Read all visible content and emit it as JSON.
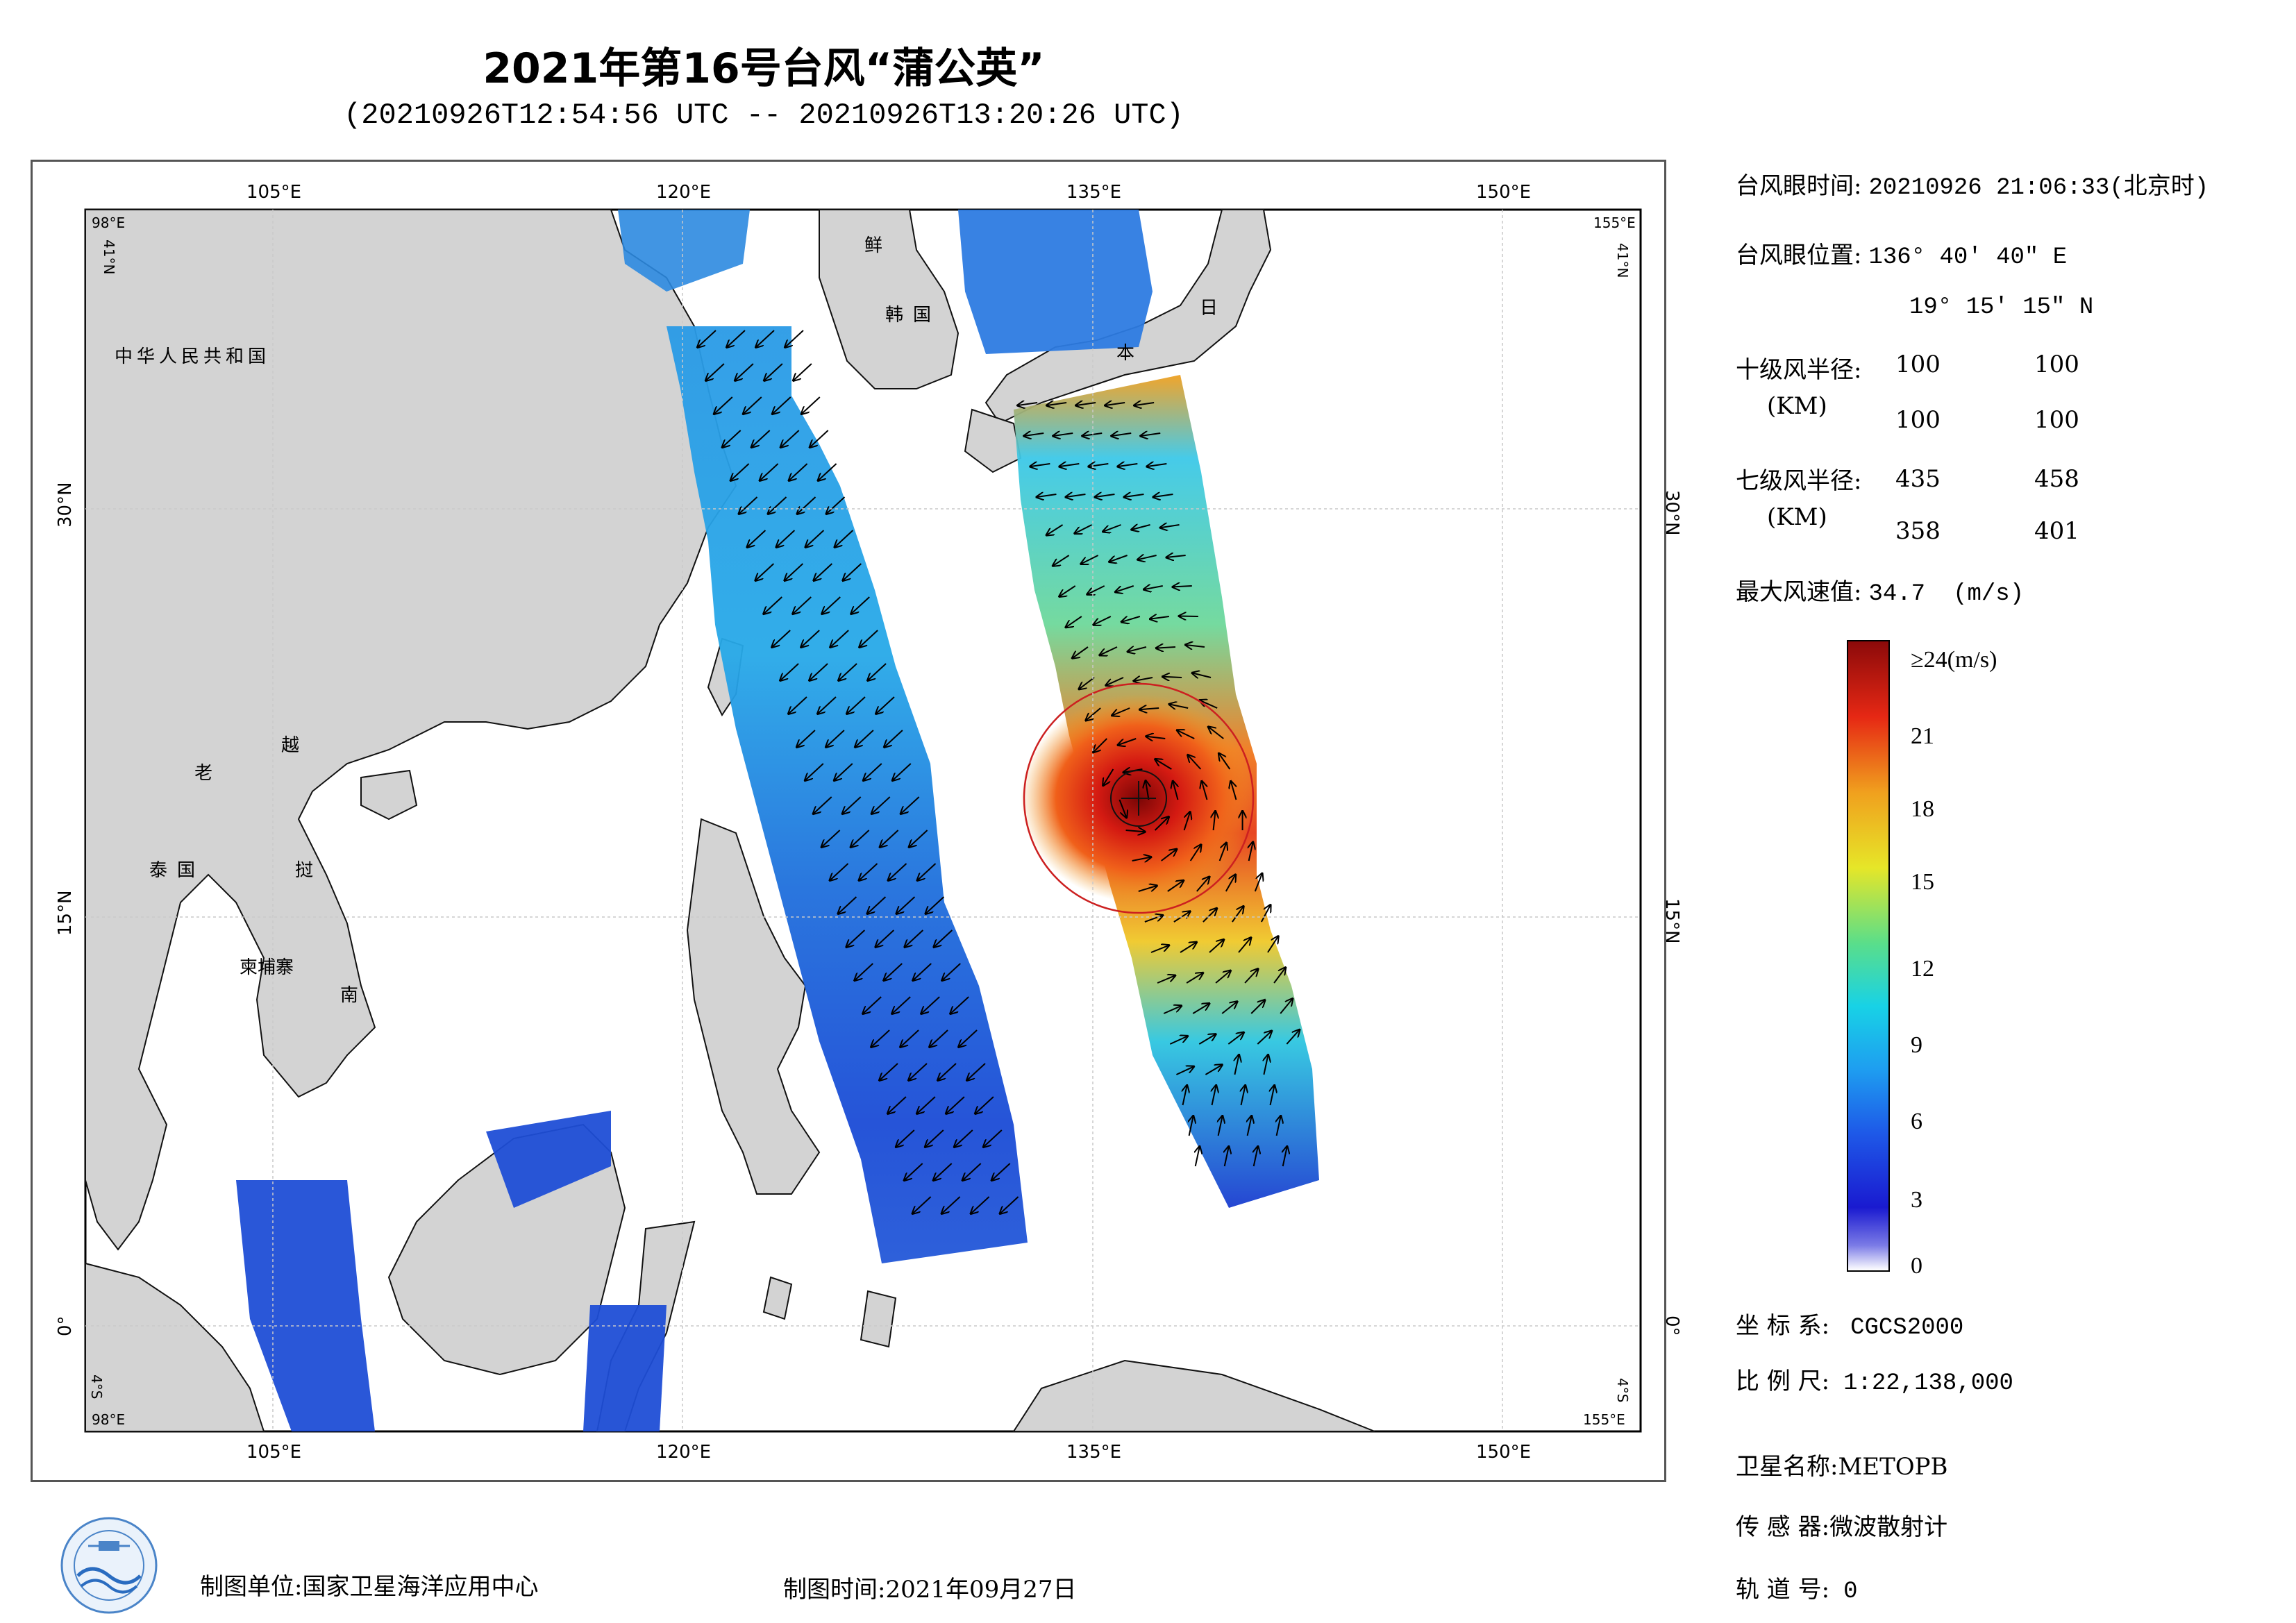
{
  "title": "2021年第16号台风“蒲公英”",
  "subtitle": "(20210926T12:54:56 UTC -- 20210926T13:20:26 UTC)",
  "map": {
    "lon_ticks": [
      "105°E",
      "120°E",
      "135°E",
      "150°E"
    ],
    "lat_ticks": [
      "30°N",
      "15°N",
      "0°"
    ],
    "corner_top_left_lon": "98°E",
    "corner_top_left_lat": "41°N",
    "corner_top_right_lon": "155°E",
    "corner_top_right_lat": "41°N",
    "corner_bottom_left_lon": "98°E",
    "corner_bottom_left_lat": "4°S",
    "corner_bottom_right_lon": "155°E",
    "corner_bottom_right_lat": "4°S",
    "extent": {
      "lon_min": 98,
      "lon_max": 155,
      "lat_min": -4,
      "lat_max": 41
    },
    "labels": {
      "china": "中华人民共和国",
      "laos": "老",
      "vietnam_1": "越",
      "vietnam_2": "南",
      "thailand": "泰国",
      "cambodia": "柬埔寨",
      "korea_n": "鲜",
      "korea_s": "韩国",
      "japan_1": "日",
      "japan_2": "本",
      "indonesia_sea": "挝"
    },
    "typhoon_center": {
      "lon": 136.68,
      "lat": 19.25
    },
    "swath_1_color": "#2c6ee0",
    "swath_2_color": "#35b6e0",
    "storm_core_color": "#c81818",
    "land_color": "#d3d3d3",
    "circle_color": "#cc2020"
  },
  "info": {
    "eye_time_label": "台风眼时间:",
    "eye_time_value": "20210926 21:06:33(北京时)",
    "eye_pos_label": "台风眼位置:",
    "eye_pos_lon": "136° 40′ 40″ E",
    "eye_pos_lat": "19° 15′ 15″ N",
    "r10_label": "十级风半径:",
    "r10_unit": "(KM)",
    "r10_values": [
      "100",
      "100",
      "100",
      "100"
    ],
    "r7_label": "七级风半径:",
    "r7_unit": "(KM)",
    "r7_values": [
      "435",
      "458",
      "358",
      "401"
    ],
    "max_wind_label": "最大风速值:",
    "max_wind_value": "34.7",
    "max_wind_unit": "(m/s)"
  },
  "colorbar": {
    "top_label": "≥24(m/s)",
    "ticks": [
      "21",
      "18",
      "15",
      "12",
      "9",
      "6",
      "3",
      "0"
    ],
    "colors": [
      "#ffffff",
      "#1010c8",
      "#1e78f0",
      "#10d2e6",
      "#3cdc78",
      "#e6e628",
      "#f0a01e",
      "#e62814",
      "#8c0a0a"
    ]
  },
  "meta": {
    "crs_label": "坐 标 系:",
    "crs_value": "CGCS2000",
    "scale_label": "比 例 尺:",
    "scale_value": "1:22,138,000",
    "satellite_label": "卫星名称:",
    "satellite_value": "METOPB",
    "sensor_label": "传 感 器:",
    "sensor_value": "微波散射计",
    "orbit_label": "轨 道 号:",
    "orbit_value": "0"
  },
  "footer": {
    "unit_label": "制图单位:",
    "unit_value": "国家卫星海洋应用中心",
    "date_label": "制图时间:",
    "date_value": "2021年09月27日"
  }
}
